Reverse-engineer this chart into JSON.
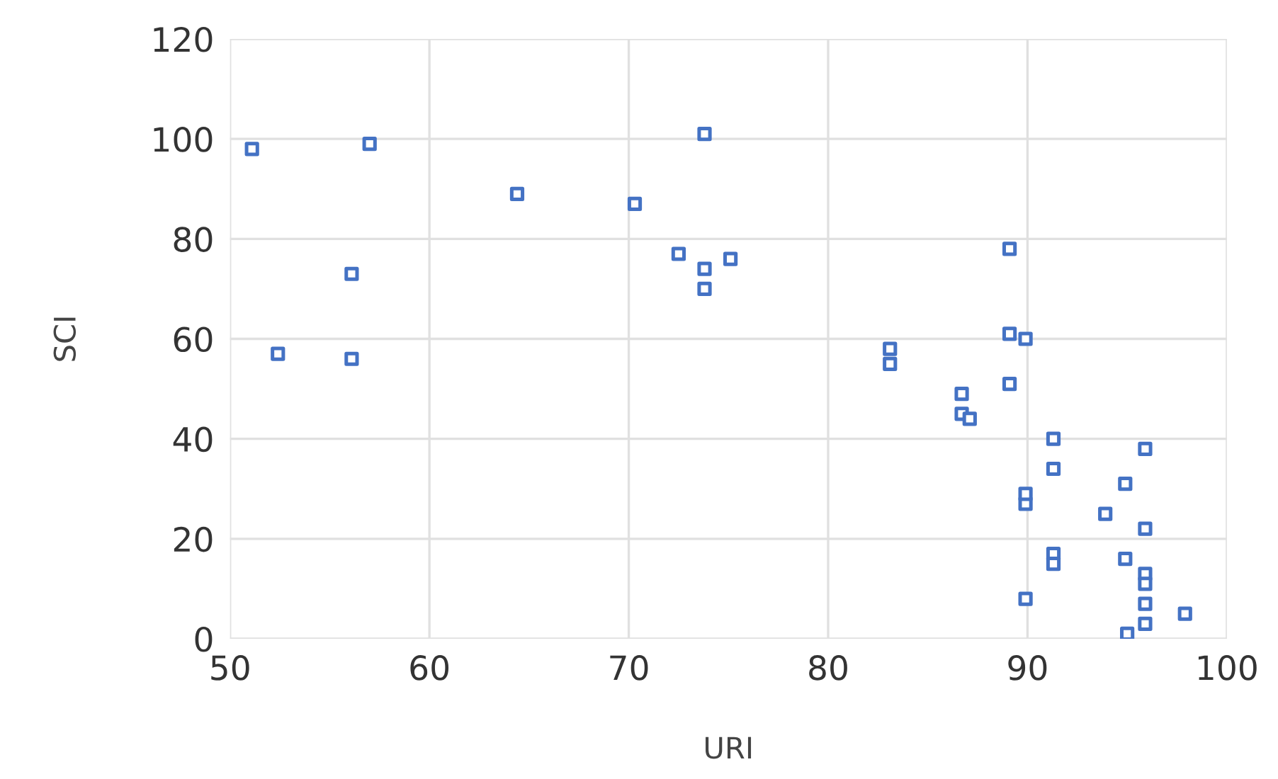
{
  "chart_data": {
    "type": "scatter",
    "xlabel": "URI",
    "ylabel": "SCI",
    "x": [
      51.1,
      57.0,
      73.8,
      64.4,
      70.3,
      72.5,
      75.1,
      73.8,
      73.8,
      56.1,
      52.4,
      56.1,
      89.1,
      83.1,
      83.1,
      89.1,
      89.9,
      86.7,
      89.1,
      86.7,
      87.1,
      91.3,
      95.9,
      91.3,
      94.9,
      89.9,
      89.9,
      93.9,
      95.9,
      91.3,
      91.3,
      94.9,
      95.9,
      95.9,
      89.9,
      95.9,
      97.9,
      95.9,
      95.0
    ],
    "values": [
      98,
      99,
      101,
      89,
      87,
      77,
      76,
      74,
      70,
      73,
      57,
      56,
      78,
      58,
      55,
      61,
      60,
      49,
      51,
      45,
      44,
      40,
      38,
      34,
      31,
      27,
      29,
      25,
      22,
      17,
      15,
      16,
      13,
      11,
      8,
      7,
      5,
      3,
      1
    ],
    "color": "#4472c4",
    "marker": "square",
    "xlim": [
      50,
      100
    ],
    "ylim": [
      0,
      120
    ],
    "xticks": [
      50,
      60,
      70,
      80,
      90,
      100
    ],
    "yticks": [
      0,
      20,
      40,
      60,
      80,
      100,
      120
    ],
    "grid": true
  }
}
